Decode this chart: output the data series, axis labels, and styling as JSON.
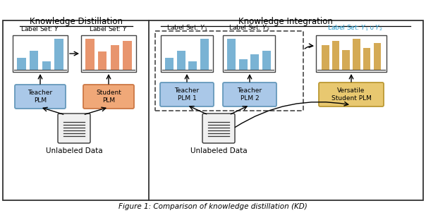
{
  "fig_width": 6.04,
  "fig_height": 3.12,
  "dpi": 100,
  "background_color": "#ffffff",
  "bar_blue": "#7ab3d4",
  "bar_orange": "#e8956e",
  "bar_yellow": "#d4aa55",
  "plm_blue_fill": "#aac8e8",
  "plm_blue_edge": "#6699bb",
  "plm_orange_fill": "#f0a878",
  "plm_orange_edge": "#cc7744",
  "plm_yellow_fill": "#e8c870",
  "plm_yellow_edge": "#bb9933",
  "cyan_label_color": "#2299cc",
  "section_border_color": "#333333",
  "dashed_border_color": "#555555",
  "left_title": "Knowledge Distillation",
  "right_title": "Knowledge Integration",
  "teacher_plm": "Teacher\nPLM",
  "student_plm": "Student\nPLM",
  "teacher_plm1": "Teacher\nPLM 1",
  "teacher_plm2": "Teacher\nPLM 2",
  "versatile_student": "Versatile\nStudent PLM",
  "unlabeled_data": "Unlabeled Data",
  "caption": "Figure 1: Comparison of knowledge distillation (KD)"
}
